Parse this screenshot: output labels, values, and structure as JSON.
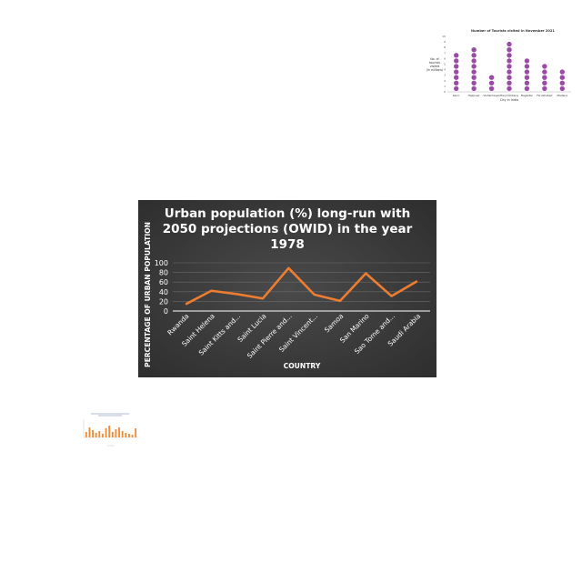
{
  "chart_data": [
    {
      "id": "main",
      "type": "line",
      "title_lines": [
        "Urban population (%) long-run with",
        "2050 projections (OWID) in the year",
        "1978"
      ],
      "xlabel": "COUNTRY",
      "ylabel": "PERCENTAGE OF URBAN POPULATION",
      "categories": [
        "Rwanda",
        "Saint Helena",
        "Saint Kitts and...",
        "Saint Lucia",
        "Saint Pierre and...",
        "Saint Vincent...",
        "Samoa",
        "San Marino",
        "Sao Tome and...",
        "Saudi Arabia"
      ],
      "values": [
        14,
        42,
        35,
        26,
        89,
        34,
        21,
        78,
        31,
        62
      ],
      "yticks": [
        0,
        20,
        40,
        60,
        80,
        100
      ],
      "ylim": [
        0,
        100
      ],
      "grid": true,
      "colors": {
        "background": "#3a3a3a",
        "line": "#ed7d31",
        "text": "#ffffff",
        "grid": "#6a6a6a"
      }
    },
    {
      "id": "tourists",
      "type": "dot-column",
      "title": "Number of Tourists visited in November 2021",
      "ylabel_lines": [
        "No. of",
        "tourists",
        "visited",
        "(in millions)"
      ],
      "xlabel": "City in India",
      "categories": [
        "Kerur",
        "Hajipuair",
        "Vishakhavali",
        "Haryl bhikana",
        "Bagasfar",
        "Farukhabad",
        "Madana"
      ],
      "values": [
        7,
        8,
        3,
        9,
        6,
        5,
        4
      ],
      "yticks": [
        0,
        1,
        2,
        3,
        4,
        5,
        6,
        7,
        8,
        9,
        10
      ],
      "ylim": [
        0,
        10
      ],
      "colors": {
        "dot": "#9b4aa8"
      }
    },
    {
      "id": "bars",
      "type": "bar",
      "values": [
        30,
        55,
        40,
        25,
        35,
        20,
        50,
        65,
        30,
        45,
        55,
        35,
        25,
        20,
        15,
        50
      ],
      "ylim": [
        0,
        100
      ],
      "colors": {
        "bar": "#f08a33"
      }
    }
  ]
}
